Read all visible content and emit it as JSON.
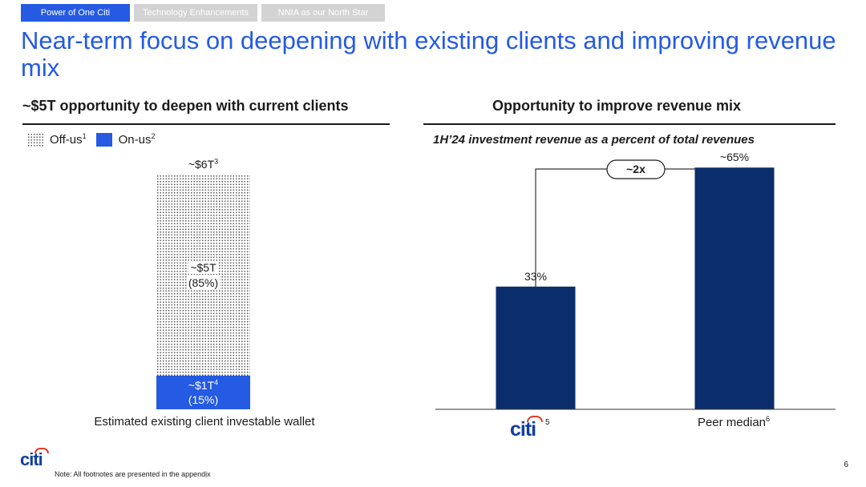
{
  "tabs": [
    "Power of One Citi",
    "Technology Enhancements",
    "NNIA as our North Star"
  ],
  "title": "Near-term focus on deepening with existing clients and improving revenue mix",
  "left": {
    "heading": "~$5T opportunity to deepen with current clients",
    "legend": {
      "off_us": "Off-us",
      "off_us_note": "1",
      "on_us": "On-us",
      "on_us_note": "2"
    },
    "total_label": "~$6T",
    "total_note": "3",
    "off_label": "~$5T",
    "off_pct": "(85%)",
    "on_label": "~$1T",
    "on_note": "4",
    "on_pct": "(15%)",
    "caption": "Estimated existing client investable wallet"
  },
  "right": {
    "heading": "Opportunity to improve revenue mix",
    "subtitle": "1H’24 investment revenue as a percent of total revenues",
    "multiplier": "~2x",
    "cat1_note": "5",
    "cat2": "Peer median",
    "cat2_note": "6"
  },
  "chart_data": [
    {
      "type": "bar",
      "stacked": true,
      "categories": [
        "Estimated existing client investable wallet"
      ],
      "series": [
        {
          "name": "On-us",
          "values": [
            1
          ],
          "labels": [
            "~$1T (15%)"
          ],
          "color": "#255be3"
        },
        {
          "name": "Off-us",
          "values": [
            5
          ],
          "labels": [
            "~$5T (85%)"
          ],
          "color": "dotted"
        }
      ],
      "total_label": "~$6T"
    },
    {
      "type": "bar",
      "categories": [
        "Citi",
        "Peer median"
      ],
      "values": [
        33,
        65
      ],
      "labels": [
        "33%",
        "~65%"
      ],
      "ylim": [
        0,
        75
      ],
      "color": "#0b2d6b",
      "annotation": "~2x"
    }
  ],
  "footer": {
    "logo": "citi",
    "note": "Note:  All footnotes are presented in the appendix",
    "page": "6"
  }
}
